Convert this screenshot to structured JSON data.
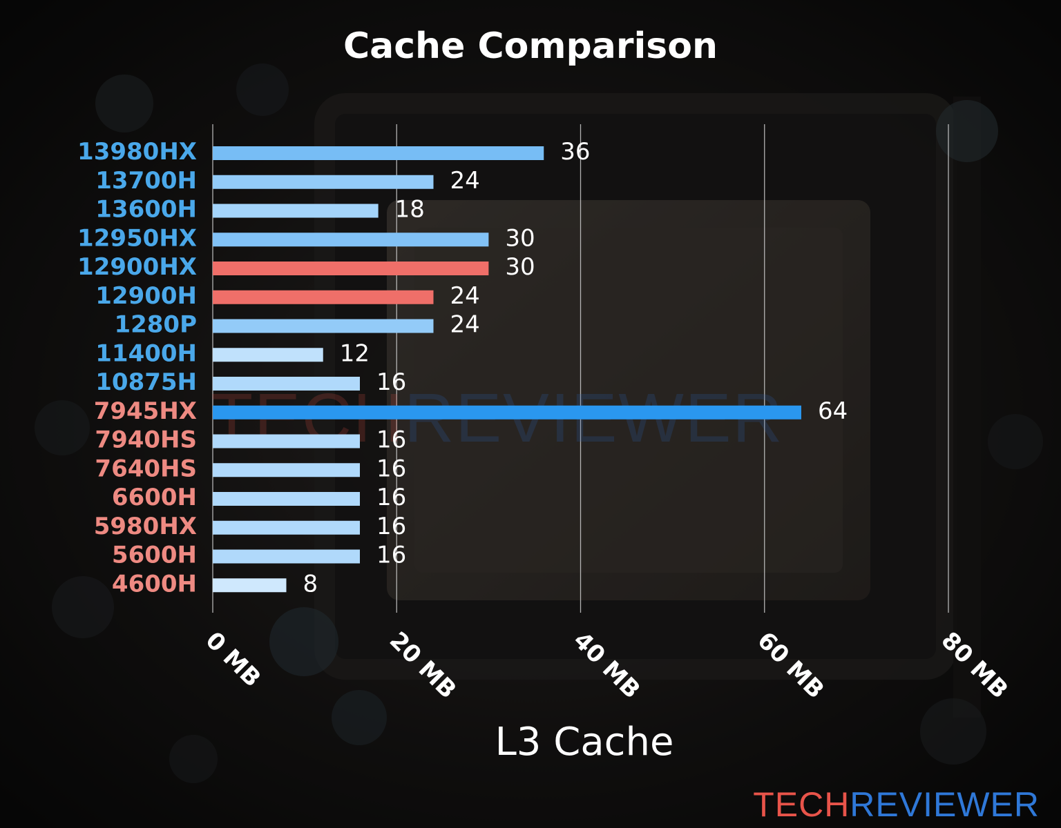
{
  "chart_data": {
    "type": "bar",
    "orientation": "horizontal",
    "title": "Cache Comparison",
    "xlabel": "L3 Cache",
    "ylabel": "",
    "xlim": [
      0,
      80
    ],
    "ticks": [
      0,
      20,
      40,
      60,
      80
    ],
    "tick_labels": [
      "0 MB",
      "20 MB",
      "40 MB",
      "60 MB",
      "80 MB"
    ],
    "grid": "vertical",
    "categories": [
      "13980HX",
      "13700H",
      "13600H",
      "12950HX",
      "12900HX",
      "12900H",
      "1280P",
      "11400H",
      "10875H",
      "7945HX",
      "7940HS",
      "7640HS",
      "6600H",
      "5980HX",
      "5600H",
      "4600H"
    ],
    "values": [
      36,
      24,
      18,
      30,
      30,
      24,
      24,
      12,
      16,
      64,
      16,
      16,
      16,
      16,
      16,
      8
    ],
    "label_colors": [
      "#4aa8ea",
      "#4aa8ea",
      "#4aa8ea",
      "#4aa8ea",
      "#4aa8ea",
      "#4aa8ea",
      "#4aa8ea",
      "#4aa8ea",
      "#4aa8ea",
      "#ee8a82",
      "#ee8a82",
      "#ee8a82",
      "#ee8a82",
      "#ee8a82",
      "#ee8a82",
      "#ee8a82"
    ],
    "bar_colors": [
      "#77bdf5",
      "#93cbf8",
      "#a4d4fa",
      "#82c2f6",
      "#ef6f69",
      "#ef6f69",
      "#93cbf8",
      "#c0e1fc",
      "#b0d9fb",
      "#2a97ef",
      "#b0d9fb",
      "#b0d9fb",
      "#b0d9fb",
      "#b0d9fb",
      "#b0d9fb",
      "#cfe8fd"
    ]
  },
  "watermark": {
    "part1": "TECH",
    "part2": "REVIEWER"
  },
  "logo": {
    "part1": "TECH",
    "part2": "REVIEWER"
  },
  "colors": {
    "intel_label": "#4aa8ea",
    "amd_label": "#ee8a82",
    "logo_tech": "#e8544a",
    "logo_reviewer": "#2f78d8"
  }
}
